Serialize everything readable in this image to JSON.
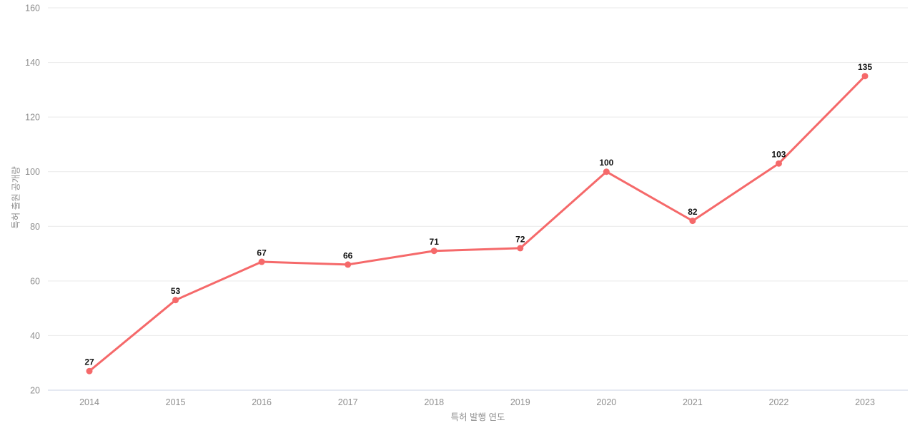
{
  "chart_data": {
    "type": "line",
    "title": "",
    "xlabel": "특허 발행 연도",
    "ylabel": "특허 출원 공개량",
    "categories": [
      "2014",
      "2015",
      "2016",
      "2017",
      "2018",
      "2019",
      "2020",
      "2021",
      "2022",
      "2023"
    ],
    "values": [
      27,
      53,
      67,
      66,
      71,
      72,
      100,
      82,
      103,
      135
    ],
    "ylim": [
      20,
      160
    ],
    "ytick_step": 20,
    "yticks": [
      20,
      40,
      60,
      80,
      100,
      120,
      140,
      160
    ],
    "grid": true,
    "legend_position": "none",
    "data_labels_shown": true,
    "colors": {
      "line": "#f5696a",
      "marker": "#f5696a",
      "grid": "#e9e9e9",
      "axis_baseline": "#cbd3e4",
      "tick_text": "#8f8f8f",
      "data_label_text": "#111111",
      "background": "#ffffff"
    }
  }
}
